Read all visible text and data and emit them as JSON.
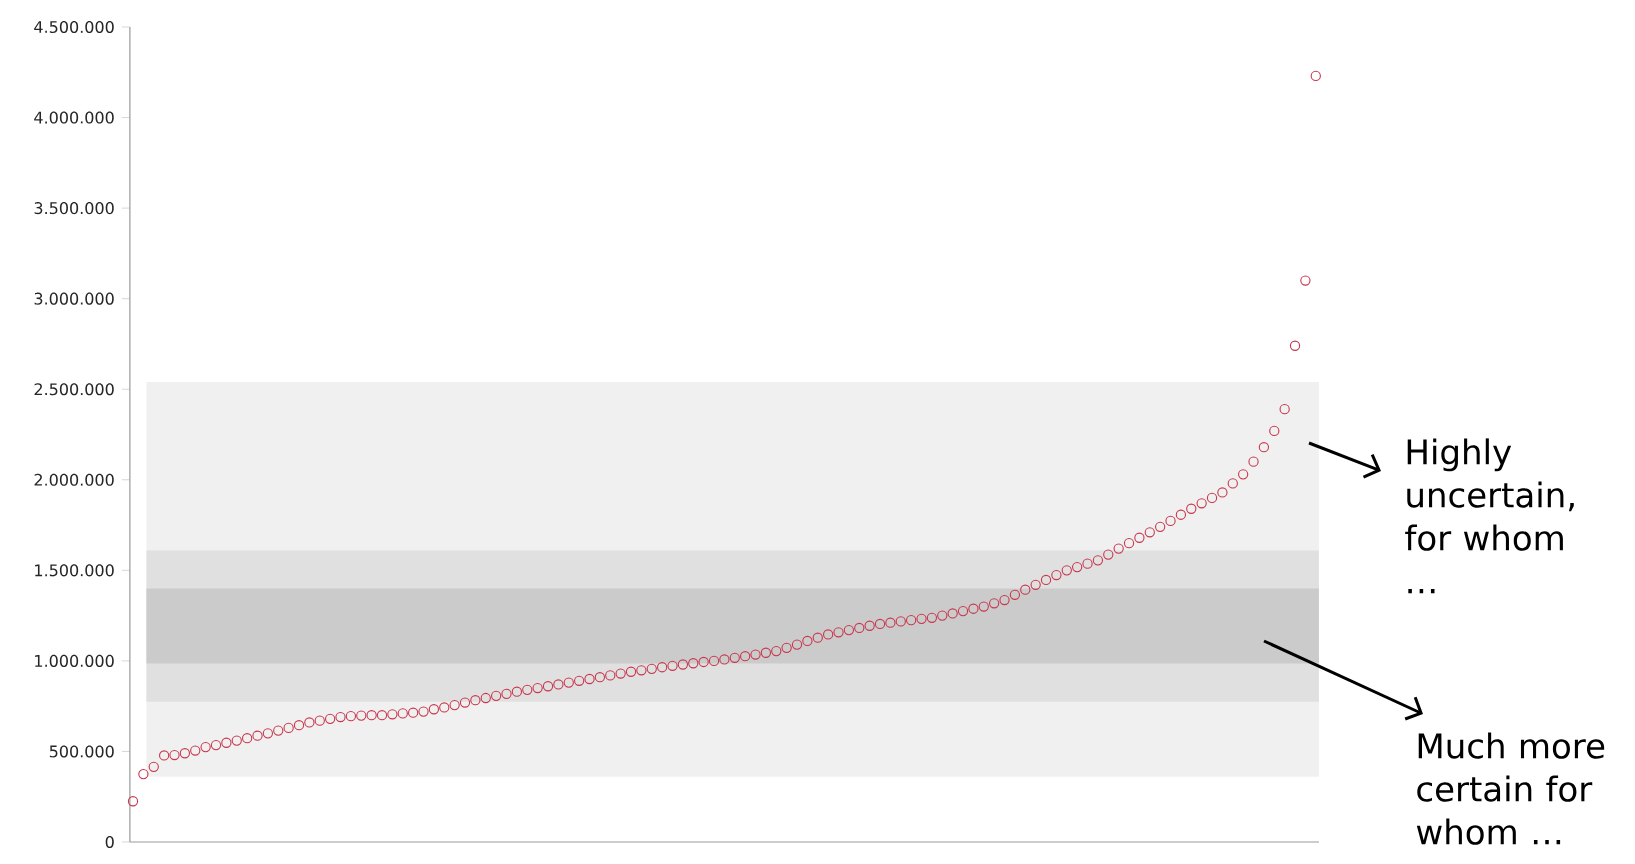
{
  "chart_data": {
    "type": "scatter",
    "categories": [
      null,
      null,
      null,
      null,
      null,
      null,
      null,
      null,
      null,
      null,
      null,
      null,
      null,
      null,
      null,
      null,
      null,
      null,
      null,
      null,
      null,
      null,
      null,
      null,
      null,
      null,
      null,
      null,
      null,
      null,
      null,
      null,
      null,
      null,
      null,
      null,
      null,
      null,
      null,
      null,
      null,
      null,
      null,
      null,
      null,
      null,
      null,
      null,
      null,
      null,
      null,
      null,
      null,
      null,
      null,
      null,
      null,
      null,
      null,
      null,
      null,
      null,
      null,
      null,
      null,
      null,
      null,
      null,
      null,
      null,
      null,
      null,
      null,
      null,
      null,
      null,
      null,
      null,
      null,
      null,
      null,
      null,
      null,
      null,
      null,
      null,
      null,
      null,
      null,
      null,
      null,
      null,
      null,
      null,
      null,
      null,
      null,
      null,
      null,
      null,
      null,
      null,
      null,
      null,
      null,
      null,
      null,
      null,
      null,
      null,
      null,
      null,
      null,
      null,
      null
    ],
    "values": [
      225000,
      375000,
      415000,
      478000,
      480000,
      490000,
      505000,
      524000,
      535000,
      548000,
      560000,
      573000,
      587000,
      600000,
      615000,
      630000,
      645000,
      660000,
      670000,
      680000,
      690000,
      695000,
      698000,
      700000,
      700000,
      705000,
      710000,
      714000,
      720000,
      733000,
      743000,
      756000,
      770000,
      783000,
      795000,
      807000,
      818000,
      830000,
      840000,
      850000,
      860000,
      870000,
      880000,
      890000,
      900000,
      910000,
      920000,
      930000,
      940000,
      948000,
      956000,
      965000,
      973000,
      980000,
      987000,
      994000,
      1000000,
      1008000,
      1017000,
      1026000,
      1035000,
      1045000,
      1054000,
      1072000,
      1090000,
      1110000,
      1128000,
      1146000,
      1158000,
      1170000,
      1182000,
      1194000,
      1204000,
      1211000,
      1218000,
      1225000,
      1232000,
      1238000,
      1250000,
      1262000,
      1275000,
      1288000,
      1300000,
      1318000,
      1336000,
      1365000,
      1393000,
      1420000,
      1447000,
      1474000,
      1500000,
      1518000,
      1537000,
      1555000,
      1587000,
      1620000,
      1650000,
      1680000,
      1710000,
      1740000,
      1773000,
      1807000,
      1840000,
      1870000,
      1900000,
      1930000,
      1980000,
      2030000,
      2100000,
      2180000,
      2270000,
      2390000,
      2740000,
      3100000,
      4230000
    ],
    "color": "#c8374d",
    "marker": "circle",
    "tick_labels": "y",
    "ylim": [
      0,
      4500000
    ],
    "yticks": [
      0,
      {
        "value": 500000,
        "label": "500.000"
      },
      {
        "value": 1000000,
        "label": "1.000.000"
      },
      {
        "value": 1500000,
        "label": "1.500.000"
      },
      {
        "value": 2000000,
        "label": "2.000.000"
      },
      {
        "value": 2500000,
        "label": "2.500.000"
      },
      {
        "value": 3000000,
        "label": "3.000.000"
      },
      {
        "value": 3500000,
        "label": "3.500.000"
      },
      {
        "value": 4000000,
        "label": "4.000.000"
      },
      {
        "value": 4500000,
        "label": "4.500.000"
      }
    ],
    "bands": [
      {
        "axis": "y",
        "from": 360000,
        "to": 2540000,
        "color": "#f0f0f0"
      },
      {
        "axis": "y",
        "from": 775000,
        "to": 1610000,
        "color": "#e0e0e0"
      },
      {
        "axis": "y",
        "from": 985000,
        "to": 1400000,
        "color": "#cbcbcb"
      }
    ],
    "annotations": [
      "Highly uncertain, for whom …",
      "Much more certain for whom …"
    ]
  }
}
